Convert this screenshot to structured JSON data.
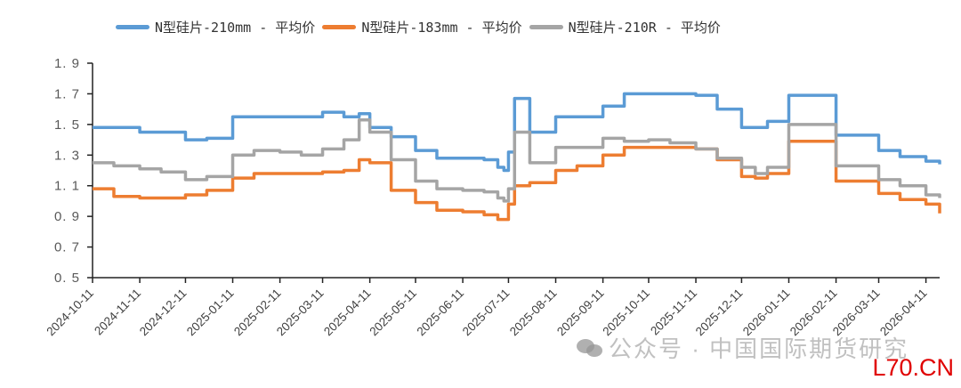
{
  "chart_data": {
    "type": "line",
    "title": "",
    "xlabel": "",
    "ylabel": "",
    "ylim": [
      0.5,
      1.9
    ],
    "yticks": [
      "1.9",
      "1.7",
      "1.5",
      "1.3",
      "1.1",
      "0.9",
      "0.7",
      "0.5"
    ],
    "grid": false,
    "legend_position": "top",
    "x_tick_labels": [
      "2024-10-11",
      "2024-11-11",
      "2024-12-11",
      "2025-01-11",
      "2025-02-11",
      "2025-03-11",
      "2025-04-11",
      "2025-05-11",
      "2025-06-11",
      "2025-07-11",
      "2025-08-11",
      "2025-09-11",
      "2025-10-11",
      "2025-11-11",
      "2025-12-11",
      "2026-01-11",
      "2026-02-11",
      "2026-03-11",
      "2026-04-11"
    ],
    "x": [
      "2024-10-11",
      "2024-10-25",
      "2024-11-11",
      "2024-11-25",
      "2024-12-11",
      "2024-12-25",
      "2025-01-11",
      "2025-01-25",
      "2025-02-11",
      "2025-02-25",
      "2025-03-11",
      "2025-03-25",
      "2025-04-04",
      "2025-04-11",
      "2025-04-25",
      "2025-05-11",
      "2025-05-25",
      "2025-06-11",
      "2025-06-25",
      "2025-07-04",
      "2025-07-08",
      "2025-07-11",
      "2025-07-15",
      "2025-07-25",
      "2025-08-11",
      "2025-08-25",
      "2025-09-11",
      "2025-09-25",
      "2025-10-11",
      "2025-10-25",
      "2025-11-11",
      "2025-11-25",
      "2025-12-11",
      "2025-12-20",
      "2025-12-28",
      "2026-01-11",
      "2026-01-25",
      "2026-02-11",
      "2026-02-25",
      "2026-03-11",
      "2026-03-25",
      "2026-04-11",
      "2026-04-20"
    ],
    "series": [
      {
        "name": "N型硅片-210mm - 平均价",
        "color": "#5b9bd5",
        "values": [
          1.48,
          1.48,
          1.45,
          1.45,
          1.4,
          1.41,
          1.55,
          1.55,
          1.55,
          1.55,
          1.58,
          1.55,
          1.57,
          1.48,
          1.42,
          1.33,
          1.28,
          1.28,
          1.27,
          1.22,
          1.2,
          1.32,
          1.67,
          1.45,
          1.55,
          1.55,
          1.62,
          1.7,
          1.7,
          1.7,
          1.69,
          1.6,
          1.48,
          1.48,
          1.52,
          1.69,
          1.69,
          1.43,
          1.43,
          1.33,
          1.29,
          1.26,
          1.24
        ]
      },
      {
        "name": "N型硅片-183mm - 平均价",
        "color": "#ed7d31",
        "values": [
          1.08,
          1.03,
          1.02,
          1.02,
          1.04,
          1.07,
          1.15,
          1.18,
          1.18,
          1.18,
          1.19,
          1.2,
          1.27,
          1.25,
          1.07,
          0.99,
          0.94,
          0.93,
          0.91,
          0.88,
          0.88,
          0.98,
          1.1,
          1.12,
          1.2,
          1.23,
          1.3,
          1.35,
          1.35,
          1.35,
          1.34,
          1.27,
          1.16,
          1.15,
          1.18,
          1.39,
          1.39,
          1.13,
          1.13,
          1.05,
          1.01,
          0.98,
          0.92
        ]
      },
      {
        "name": "N型硅片-210R - 平均价",
        "color": "#a5a5a5",
        "values": [
          1.25,
          1.23,
          1.21,
          1.19,
          1.14,
          1.16,
          1.3,
          1.33,
          1.32,
          1.3,
          1.34,
          1.4,
          1.53,
          1.45,
          1.27,
          1.13,
          1.08,
          1.07,
          1.06,
          1.02,
          1.0,
          1.08,
          1.45,
          1.25,
          1.35,
          1.35,
          1.41,
          1.39,
          1.4,
          1.38,
          1.34,
          1.28,
          1.22,
          1.18,
          1.22,
          1.5,
          1.5,
          1.23,
          1.23,
          1.14,
          1.1,
          1.04,
          1.02
        ]
      }
    ]
  },
  "legend": [
    {
      "label": "N型硅片-210mm - 平均价",
      "color": "#5b9bd5"
    },
    {
      "label": "N型硅片-183mm - 平均价",
      "color": "#ed7d31"
    },
    {
      "label": "N型硅片-210R - 平均价",
      "color": "#a5a5a5"
    }
  ],
  "watermark": {
    "text": "公众号 · 中国国际期货研究"
  },
  "site_mark": {
    "text": "L70.CN"
  }
}
